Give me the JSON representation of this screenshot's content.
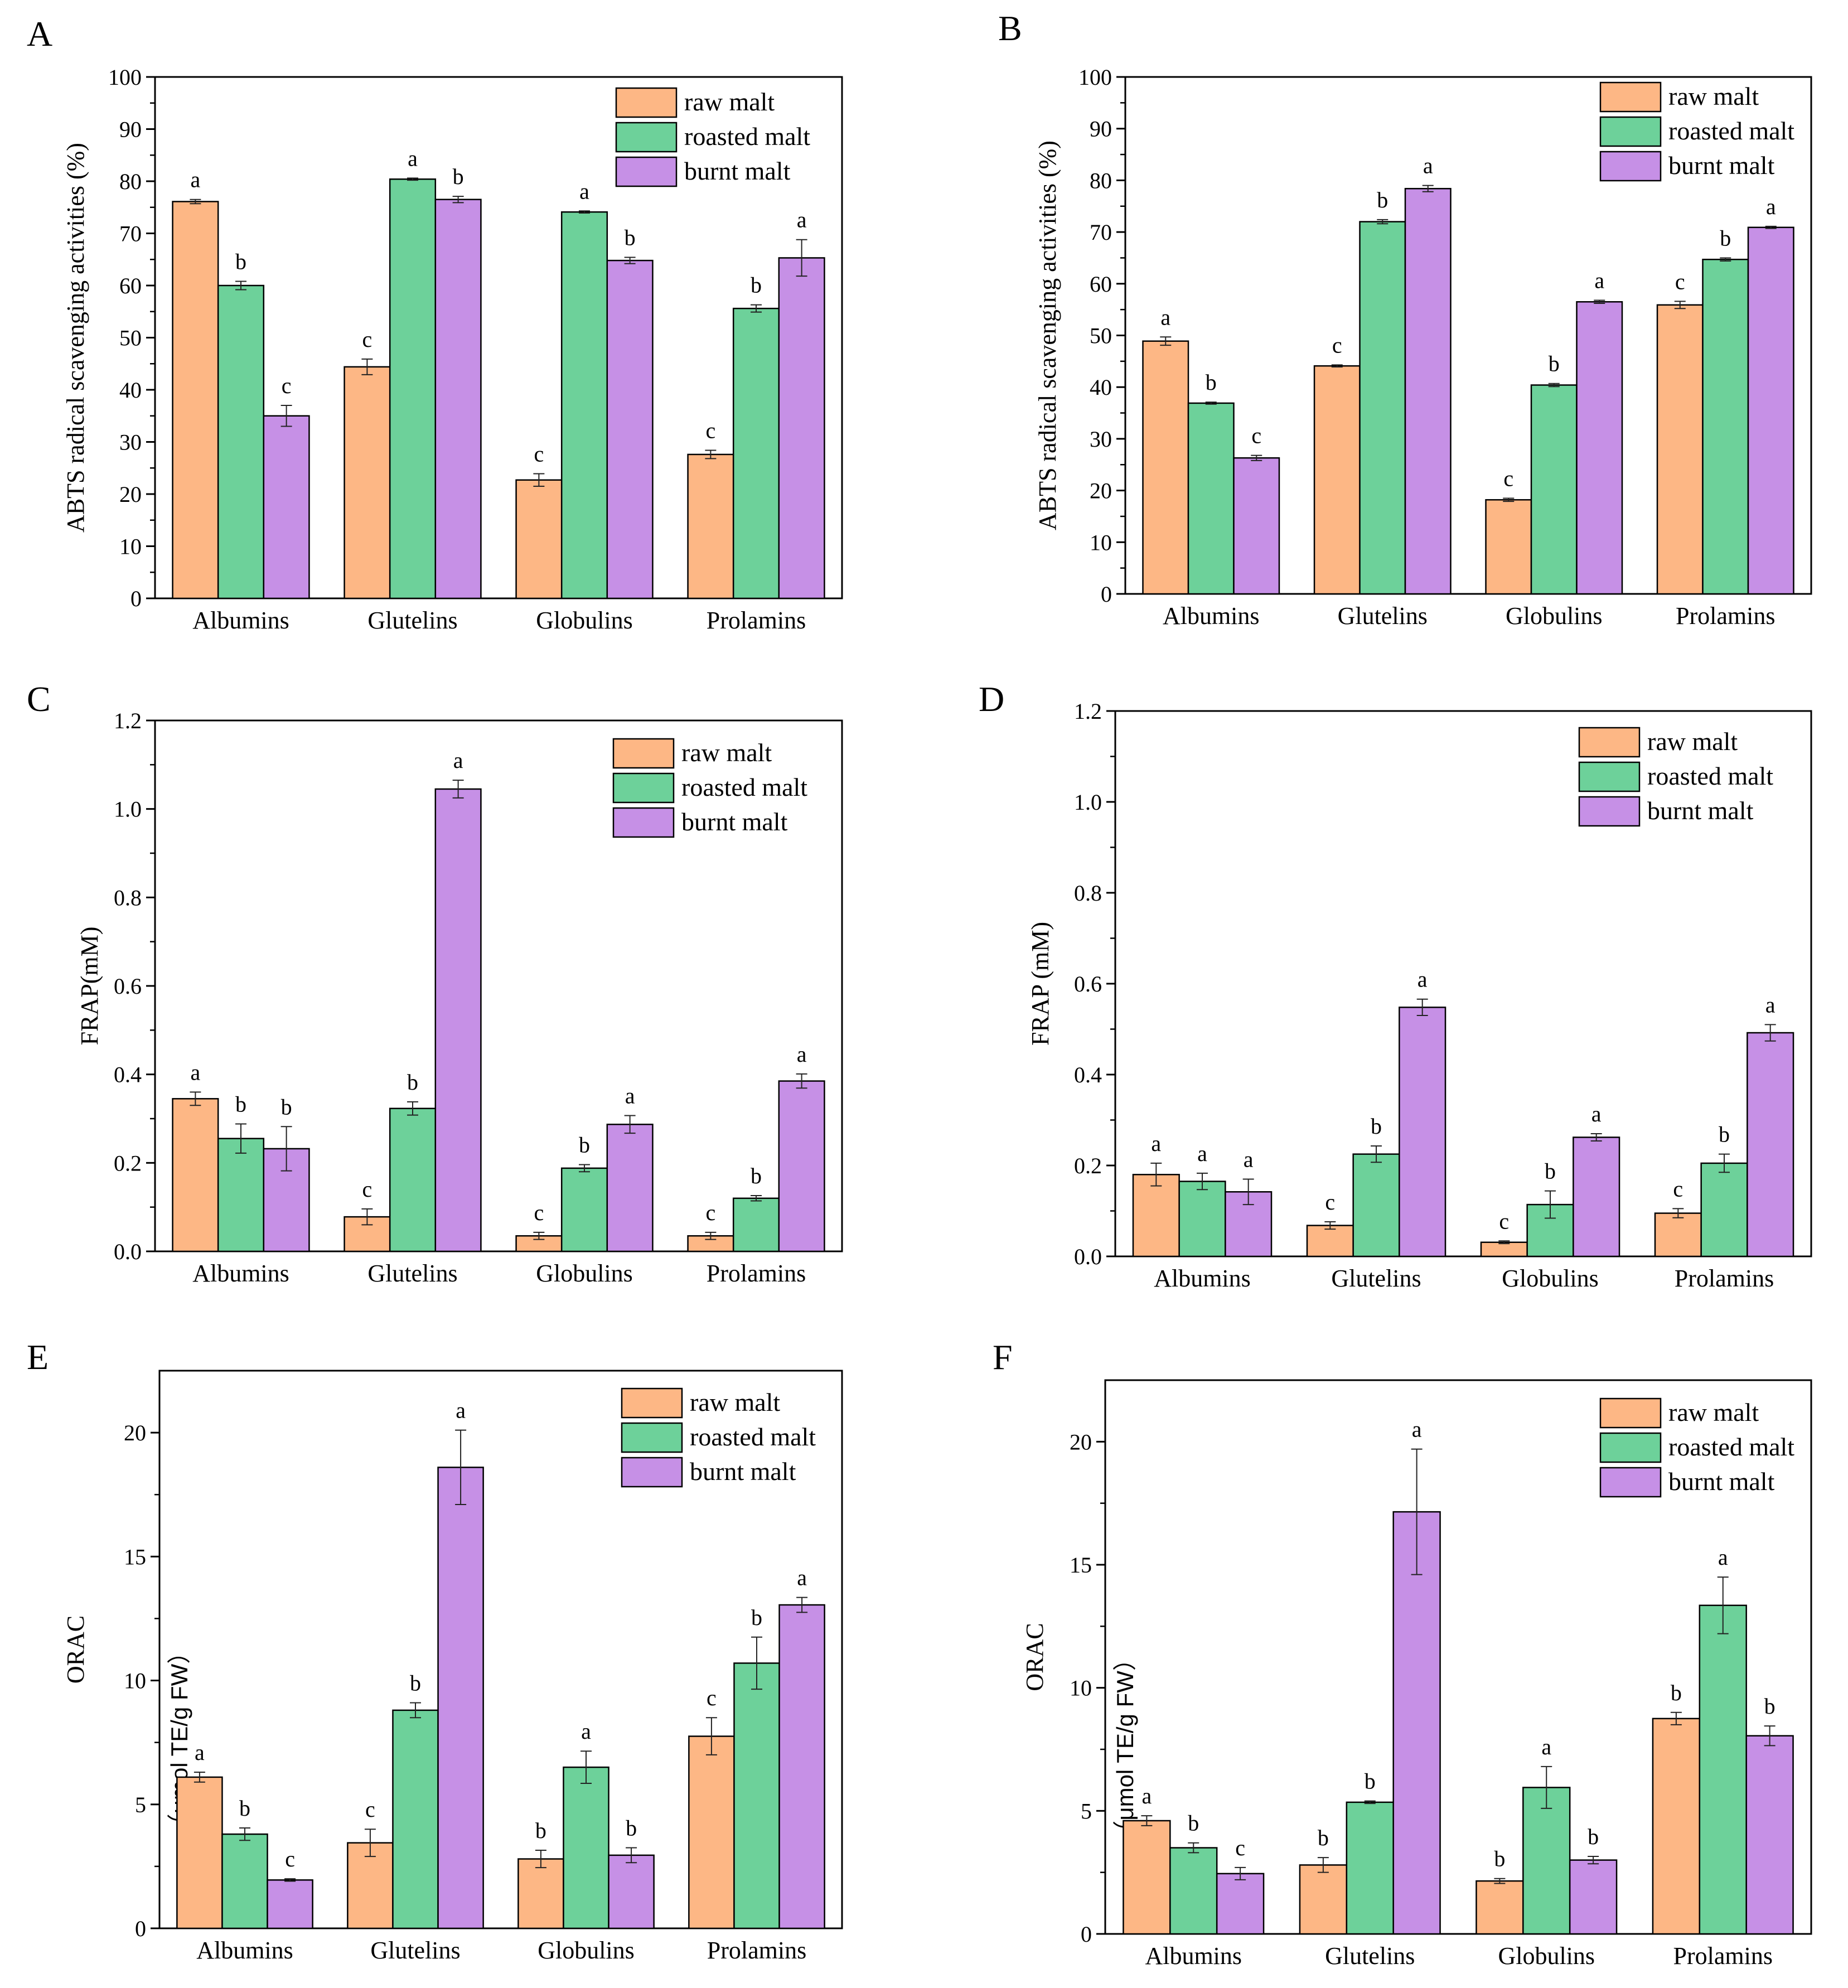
{
  "figure": {
    "colors": {
      "raw": "#FDB785",
      "roasted": "#6DD19A",
      "burnt": "#C690E6",
      "axis": "#000000",
      "errorbar": "#222222"
    }
  },
  "chart_data": [
    {
      "panel": "A",
      "type": "bar",
      "ylabel": "ABTS radical scavenging activities (%)",
      "xlabel": "",
      "ylim": [
        0,
        100
      ],
      "yticks": [
        0,
        10,
        20,
        30,
        40,
        50,
        60,
        70,
        80,
        90,
        100
      ],
      "categories": [
        "Albumins",
        "Glutelins",
        "Globulins",
        "Prolamins"
      ],
      "legend_position": "top-right",
      "series": [
        {
          "name": "raw malt",
          "color_key": "raw",
          "values": [
            76.1,
            44.4,
            22.7,
            27.6
          ],
          "errors": [
            0.4,
            1.5,
            1.2,
            0.8
          ],
          "letters": [
            "a",
            "c",
            "c",
            "c"
          ]
        },
        {
          "name": "roasted malt",
          "color_key": "roasted",
          "values": [
            60.0,
            80.4,
            74.1,
            55.6
          ],
          "errors": [
            0.8,
            0.2,
            0.2,
            0.7
          ],
          "letters": [
            "b",
            "a",
            "a",
            "b"
          ]
        },
        {
          "name": "burnt malt",
          "color_key": "burnt",
          "values": [
            35.0,
            76.5,
            64.8,
            65.3
          ],
          "errors": [
            2.0,
            0.6,
            0.6,
            3.5
          ],
          "letters": [
            "c",
            "b",
            "b",
            "a"
          ]
        }
      ]
    },
    {
      "panel": "B",
      "type": "bar",
      "ylabel": "ABTS radical scavenging activities (%)",
      "xlabel": "",
      "ylim": [
        0,
        100
      ],
      "yticks": [
        0,
        10,
        20,
        30,
        40,
        50,
        60,
        70,
        80,
        90,
        100
      ],
      "categories": [
        "Albumins",
        "Glutelins",
        "Globulins",
        "Prolamins"
      ],
      "legend_position": "top-right",
      "series": [
        {
          "name": "raw malt",
          "color_key": "raw",
          "values": [
            48.9,
            44.1,
            18.2,
            55.9
          ],
          "errors": [
            0.8,
            0.2,
            0.3,
            0.7
          ],
          "letters": [
            "a",
            "c",
            "c",
            "c"
          ]
        },
        {
          "name": "roasted malt",
          "color_key": "roasted",
          "values": [
            36.9,
            72.0,
            40.4,
            64.7
          ],
          "errors": [
            0.2,
            0.4,
            0.3,
            0.3
          ],
          "letters": [
            "b",
            "b",
            "b",
            "b"
          ]
        },
        {
          "name": "burnt malt",
          "color_key": "burnt",
          "values": [
            26.3,
            78.4,
            56.5,
            70.9
          ],
          "errors": [
            0.5,
            0.6,
            0.3,
            0.2
          ],
          "letters": [
            "c",
            "a",
            "a",
            "a"
          ]
        }
      ]
    },
    {
      "panel": "C",
      "type": "bar",
      "ylabel": "FRAP(mM)",
      "xlabel": "",
      "ylim": [
        0,
        1.2
      ],
      "yticks": [
        0.0,
        0.2,
        0.4,
        0.6,
        0.8,
        1.0,
        1.2
      ],
      "categories": [
        "Albumins",
        "Glutelins",
        "Globulins",
        "Prolamins"
      ],
      "legend_position": "top-right",
      "series": [
        {
          "name": "raw malt",
          "color_key": "raw",
          "values": [
            0.345,
            0.078,
            0.035,
            0.035
          ],
          "errors": [
            0.015,
            0.018,
            0.008,
            0.008
          ],
          "letters": [
            "a",
            "c",
            "c",
            "c"
          ]
        },
        {
          "name": "roasted malt",
          "color_key": "roasted",
          "values": [
            0.255,
            0.323,
            0.188,
            0.12
          ],
          "errors": [
            0.033,
            0.015,
            0.008,
            0.006
          ],
          "letters": [
            "b",
            "b",
            "b",
            "b"
          ]
        },
        {
          "name": "burnt malt",
          "color_key": "burnt",
          "values": [
            0.232,
            1.045,
            0.287,
            0.385
          ],
          "errors": [
            0.05,
            0.02,
            0.02,
            0.016
          ],
          "letters": [
            "b",
            "a",
            "a",
            "a"
          ]
        }
      ]
    },
    {
      "panel": "D",
      "type": "bar",
      "ylabel": "FRAP (mM)",
      "xlabel": "",
      "ylim": [
        0,
        1.2
      ],
      "yticks": [
        0.0,
        0.2,
        0.4,
        0.6,
        0.8,
        1.0,
        1.2
      ],
      "categories": [
        "Albumins",
        "Glutelins",
        "Globulins",
        "Prolamins"
      ],
      "legend_position": "top-right",
      "series": [
        {
          "name": "raw malt",
          "color_key": "raw",
          "values": [
            0.18,
            0.068,
            0.031,
            0.095
          ],
          "errors": [
            0.025,
            0.008,
            0.003,
            0.01
          ],
          "letters": [
            "a",
            "c",
            "c",
            "c"
          ]
        },
        {
          "name": "roasted malt",
          "color_key": "roasted",
          "values": [
            0.165,
            0.225,
            0.114,
            0.205
          ],
          "errors": [
            0.018,
            0.018,
            0.03,
            0.02
          ],
          "letters": [
            "a",
            "b",
            "b",
            "b"
          ]
        },
        {
          "name": "burnt malt",
          "color_key": "burnt",
          "values": [
            0.142,
            0.548,
            0.262,
            0.492
          ],
          "errors": [
            0.028,
            0.018,
            0.008,
            0.018
          ],
          "letters": [
            "a",
            "a",
            "a",
            "a"
          ]
        }
      ]
    },
    {
      "panel": "E",
      "type": "bar",
      "ylabel": "ORAC",
      "ylabel_units": "（μmol TE/g FW）",
      "xlabel": "",
      "ylim": [
        0,
        22.5
      ],
      "yticks": [
        0,
        5,
        10,
        15,
        20
      ],
      "categories": [
        "Albumins",
        "Glutelins",
        "Globulins",
        "Prolamins"
      ],
      "legend_position": "top-right",
      "series": [
        {
          "name": "raw malt",
          "color_key": "raw",
          "values": [
            6.1,
            3.45,
            2.8,
            7.75
          ],
          "errors": [
            0.2,
            0.55,
            0.35,
            0.75
          ],
          "letters": [
            "a",
            "c",
            "b",
            "c"
          ]
        },
        {
          "name": "roasted malt",
          "color_key": "roasted",
          "values": [
            3.8,
            8.8,
            6.5,
            10.7
          ],
          "errors": [
            0.25,
            0.3,
            0.65,
            1.05
          ],
          "letters": [
            "b",
            "b",
            "a",
            "b"
          ]
        },
        {
          "name": "burnt malt",
          "color_key": "burnt",
          "values": [
            1.95,
            18.6,
            2.95,
            13.05
          ],
          "errors": [
            0.05,
            1.5,
            0.3,
            0.3
          ],
          "letters": [
            "c",
            "a",
            "b",
            "a"
          ]
        }
      ]
    },
    {
      "panel": "F",
      "type": "bar",
      "ylabel": "ORAC",
      "ylabel_units": "（μmol TE/g FW）",
      "xlabel": "",
      "ylim": [
        0,
        22.5
      ],
      "yticks": [
        0,
        5,
        10,
        15,
        20
      ],
      "categories": [
        "Albumins",
        "Glutelins",
        "Globulins",
        "Prolamins"
      ],
      "legend_position": "top-right",
      "series": [
        {
          "name": "raw malt",
          "color_key": "raw",
          "values": [
            4.6,
            2.8,
            2.15,
            8.75
          ],
          "errors": [
            0.2,
            0.3,
            0.1,
            0.25
          ],
          "letters": [
            "a",
            "b",
            "b",
            "b"
          ]
        },
        {
          "name": "roasted malt",
          "color_key": "roasted",
          "values": [
            3.5,
            5.35,
            5.95,
            13.35
          ],
          "errors": [
            0.2,
            0.05,
            0.85,
            1.15
          ],
          "letters": [
            "b",
            "b",
            "a",
            "a"
          ]
        },
        {
          "name": "burnt malt",
          "color_key": "burnt",
          "values": [
            2.45,
            17.15,
            3.0,
            8.05
          ],
          "errors": [
            0.25,
            2.55,
            0.15,
            0.4
          ],
          "letters": [
            "c",
            "a",
            "b",
            "b"
          ]
        }
      ]
    }
  ]
}
